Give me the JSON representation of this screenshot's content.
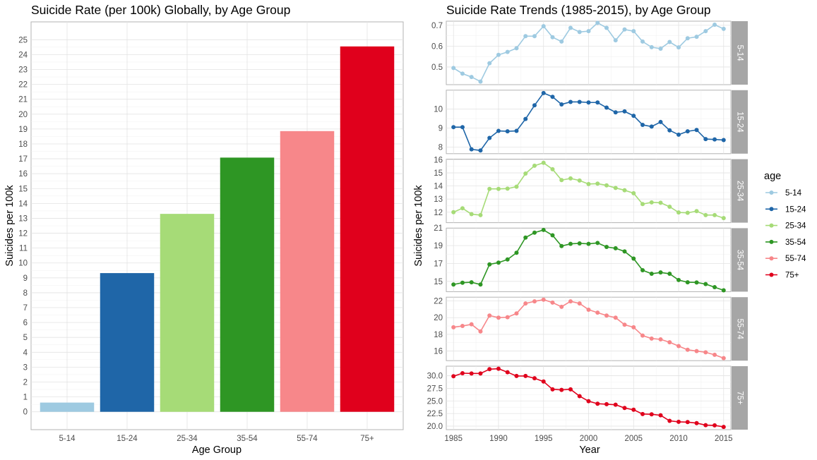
{
  "chart_data": [
    {
      "type": "bar",
      "title": "Suicide Rate (per 100k) Globally, by Age Group",
      "xlabel": "Age Group",
      "ylabel": "Suicides per 100k",
      "categories": [
        "5-14",
        "15-24",
        "25-34",
        "35-54",
        "55-74",
        "75+"
      ],
      "values": [
        0.62,
        9.32,
        13.3,
        17.08,
        18.86,
        24.55
      ],
      "colors": [
        "#9ecae1",
        "#1f66a8",
        "#a6db77",
        "#2e9624",
        "#f7878a",
        "#e0001c"
      ],
      "ylim": [
        -1.2,
        26.2
      ],
      "yticks": [
        0,
        1,
        2,
        3,
        4,
        5,
        6,
        7,
        8,
        9,
        10,
        11,
        12,
        13,
        14,
        15,
        16,
        17,
        18,
        19,
        20,
        21,
        22,
        23,
        24,
        25
      ],
      "grid": true,
      "legend": "none"
    },
    {
      "type": "line",
      "title": "Suicide Rate Trends (1985-2015), by Age Group",
      "xlabel": "Year",
      "ylabel": "Suicides per 100k",
      "x": [
        1985,
        1986,
        1987,
        1988,
        1989,
        1990,
        1991,
        1992,
        1993,
        1994,
        1995,
        1996,
        1997,
        1998,
        1999,
        2000,
        2001,
        2002,
        2003,
        2004,
        2005,
        2006,
        2007,
        2008,
        2009,
        2010,
        2011,
        2012,
        2013,
        2014,
        2015
      ],
      "xlim": [
        1984.2,
        2015.8
      ],
      "xticks": [
        1985,
        1990,
        1995,
        2000,
        2005,
        2010,
        2015
      ],
      "grid": true,
      "legend": {
        "title": "age",
        "position": "right"
      },
      "series": [
        {
          "name": "5-14",
          "color": "#9ecae1",
          "ylim": [
            0.415,
            0.72
          ],
          "yticks": [
            0.5,
            0.6,
            0.7
          ],
          "tick_labels": [
            "0.5",
            "0.6",
            "0.7"
          ],
          "values": [
            0.495,
            0.468,
            0.452,
            0.43,
            0.518,
            0.558,
            0.572,
            0.59,
            0.648,
            0.648,
            0.696,
            0.643,
            0.622,
            0.688,
            0.668,
            0.672,
            0.712,
            0.688,
            0.628,
            0.68,
            0.672,
            0.622,
            0.595,
            0.588,
            0.62,
            0.594,
            0.638,
            0.645,
            0.672,
            0.703,
            0.683
          ]
        },
        {
          "name": "15-24",
          "color": "#1f66a8",
          "ylim": [
            7.65,
            11.0
          ],
          "yticks": [
            8,
            9,
            10
          ],
          "tick_labels": [
            "8",
            "9",
            "10"
          ],
          "values": [
            9.05,
            9.05,
            7.88,
            7.82,
            8.48,
            8.85,
            8.83,
            8.85,
            9.48,
            10.2,
            10.85,
            10.65,
            10.25,
            10.38,
            10.38,
            10.35,
            10.35,
            10.08,
            9.83,
            9.88,
            9.65,
            9.17,
            9.08,
            9.32,
            8.88,
            8.65,
            8.83,
            8.9,
            8.42,
            8.4,
            8.37
          ]
        },
        {
          "name": "25-34",
          "color": "#a6db77",
          "ylim": [
            11.2,
            16.05
          ],
          "yticks": [
            12,
            13,
            14,
            15,
            16
          ],
          "tick_labels": [
            "12",
            "13",
            "14",
            "15",
            "16"
          ],
          "values": [
            12.0,
            12.3,
            11.85,
            11.78,
            13.78,
            13.78,
            13.8,
            13.95,
            14.95,
            15.55,
            15.77,
            15.28,
            14.45,
            14.58,
            14.42,
            14.15,
            14.18,
            14.05,
            13.85,
            13.68,
            13.45,
            12.62,
            12.75,
            12.72,
            12.42,
            11.98,
            11.95,
            12.08,
            11.78,
            11.78,
            11.55
          ]
        },
        {
          "name": "35-54",
          "color": "#2e9624",
          "ylim": [
            13.85,
            20.95
          ],
          "yticks": [
            15,
            17,
            19,
            21
          ],
          "tick_labels": [
            "15",
            "17",
            "19",
            "21"
          ],
          "values": [
            14.65,
            14.85,
            14.9,
            14.65,
            16.9,
            17.1,
            17.45,
            18.2,
            19.9,
            20.45,
            20.75,
            20.15,
            18.95,
            19.2,
            19.25,
            19.2,
            19.3,
            18.85,
            18.7,
            18.35,
            17.55,
            16.25,
            15.85,
            16.0,
            15.85,
            15.15,
            14.9,
            14.88,
            14.7,
            14.35,
            14.0
          ]
        },
        {
          "name": "55-74",
          "color": "#f7878a",
          "ylim": [
            14.85,
            22.45
          ],
          "yticks": [
            16,
            18,
            20,
            22
          ],
          "tick_labels": [
            "16",
            "18",
            "20",
            "22"
          ],
          "values": [
            18.85,
            19.0,
            19.2,
            18.35,
            20.25,
            20.0,
            20.05,
            20.5,
            21.7,
            21.95,
            22.15,
            21.8,
            21.3,
            21.95,
            21.7,
            20.95,
            20.6,
            20.25,
            20.0,
            19.15,
            18.85,
            17.85,
            17.5,
            17.4,
            17.05,
            16.6,
            16.15,
            16.0,
            15.85,
            15.55,
            15.15
          ]
        },
        {
          "name": "75+",
          "color": "#e0001c",
          "ylim": [
            19.3,
            31.9
          ],
          "yticks": [
            20,
            22.5,
            25,
            27.5,
            30
          ],
          "tick_labels": [
            "20.0",
            "22.5",
            "25.0",
            "27.5",
            "30.0"
          ],
          "values": [
            29.9,
            30.5,
            30.45,
            30.45,
            31.3,
            31.4,
            30.7,
            29.95,
            29.95,
            29.5,
            28.85,
            27.3,
            27.2,
            27.3,
            25.95,
            24.95,
            24.45,
            24.35,
            24.25,
            23.6,
            23.25,
            22.4,
            22.35,
            22.15,
            21.05,
            20.85,
            20.8,
            20.6,
            20.2,
            20.15,
            19.85
          ]
        }
      ]
    }
  ]
}
